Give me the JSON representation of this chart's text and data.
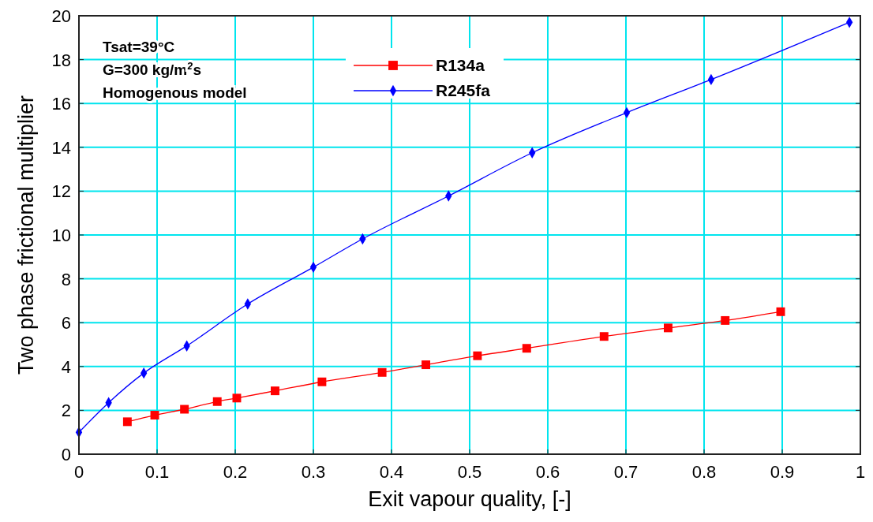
{
  "chart_data": {
    "type": "line",
    "xlabel": "Exit vapour quality, [-]",
    "ylabel": "Two phase frictional multiplier",
    "annotations": [
      "Tsat=39°C",
      "G=300 kg/m$^{2}$s",
      "Homogenous model"
    ],
    "xlim": [
      0,
      1
    ],
    "xticks": [
      0,
      0.1,
      0.2,
      0.3,
      0.4,
      0.5,
      0.6,
      0.7,
      0.8,
      0.9,
      1
    ],
    "ylim": [
      0,
      20
    ],
    "yticks": [
      0,
      2,
      4,
      6,
      8,
      10,
      12,
      14,
      16,
      18,
      20
    ],
    "grid": true,
    "legend": "top",
    "series": [
      {
        "name": "R134a",
        "color": "#ff0000",
        "marker": "square",
        "x": [
          0.062,
          0.097,
          0.135,
          0.177,
          0.202,
          0.251,
          0.311,
          0.388,
          0.444,
          0.51,
          0.573,
          0.672,
          0.754,
          0.827,
          0.898
        ],
        "values": [
          1.48,
          1.78,
          2.05,
          2.4,
          2.56,
          2.89,
          3.3,
          3.73,
          4.08,
          4.49,
          4.83,
          5.37,
          5.76,
          6.1,
          6.5
        ]
      },
      {
        "name": "R245fa",
        "color": "#0000ff",
        "marker": "diamond",
        "x": [
          0,
          0.038,
          0.083,
          0.138,
          0.216,
          0.3,
          0.363,
          0.473,
          0.58,
          0.701,
          0.809,
          0.986
        ],
        "values": [
          1.0,
          2.35,
          3.7,
          4.94,
          6.85,
          8.53,
          9.82,
          11.78,
          13.75,
          15.58,
          17.09,
          19.7
        ]
      }
    ]
  }
}
